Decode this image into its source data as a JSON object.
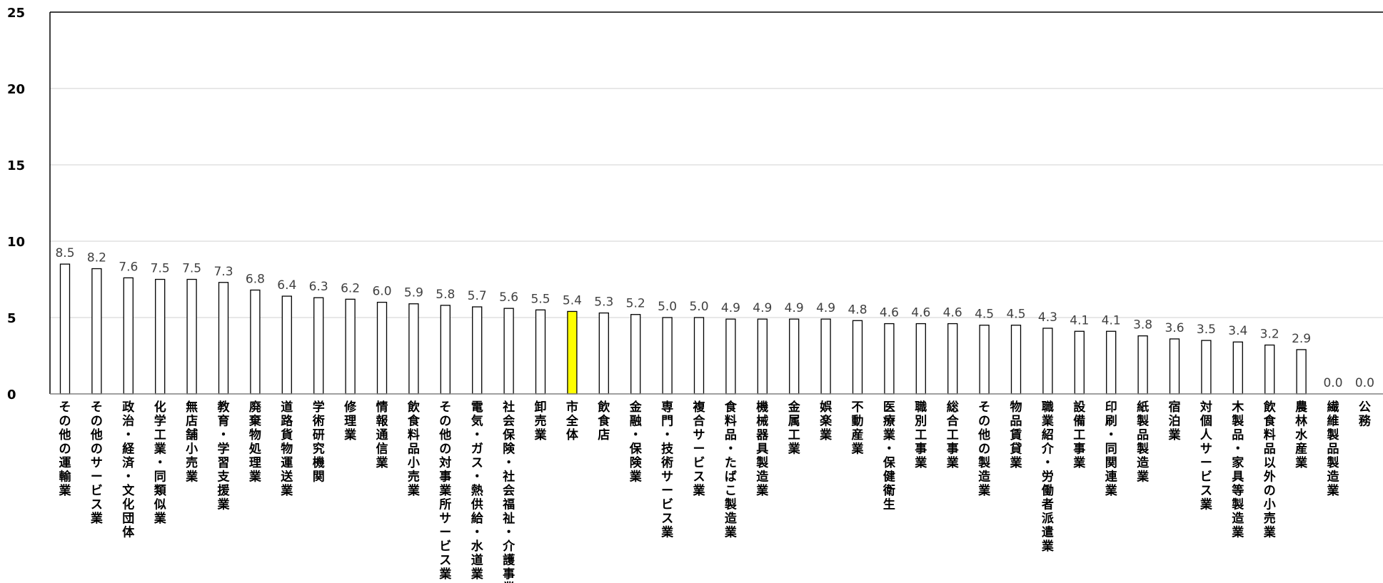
{
  "chart_data": {
    "type": "bar",
    "title": "",
    "xlabel": "",
    "ylabel": "",
    "ylim": [
      0,
      25
    ],
    "yticks": [
      0,
      5,
      10,
      15,
      20,
      25
    ],
    "grid": true,
    "highlight_category": "市全体",
    "colors": {
      "bar_fill": "#ffffff",
      "bar_stroke": "#000000",
      "highlight_fill": "#ffff00",
      "grid": "#d9d9d9"
    },
    "categories": [
      "その他の運輸業",
      "その他のサービス業",
      "政治・経済・文化団体",
      "化学工業・同類似業",
      "無店舗小売業",
      "教育・学習支援業",
      "廃棄物処理業",
      "道路貨物運送業",
      "学術研究機関",
      "修理業",
      "情報通信業",
      "飲食料品小売業",
      "その他の対事業所サービス業",
      "電気・ガス・熱供給・水道業",
      "社会保険・社会福祉・介護事業",
      "卸売業",
      "市全体",
      "飲食店",
      "金融・保険業",
      "専門・技術サービス業",
      "複合サービス業",
      "食料品・たばこ製造業",
      "機械器具製造業",
      "金属工業",
      "娯楽業",
      "不動産業",
      "医療業・保健衛生",
      "職別工事業",
      "総合工事業",
      "その他の製造業",
      "物品賃貸業",
      "職業紹介・労働者派遣業",
      "設備工事業",
      "印刷・同関連業",
      "紙製品製造業",
      "宿泊業",
      "対個人サービス業",
      "木製品・家具等製造業",
      "飲食料品以外の小売業",
      "農林水産業",
      "繊維製品製造業",
      "公務"
    ],
    "values": [
      8.5,
      8.2,
      7.6,
      7.5,
      7.5,
      7.3,
      6.8,
      6.4,
      6.3,
      6.2,
      6.0,
      5.9,
      5.8,
      5.7,
      5.6,
      5.5,
      5.4,
      5.3,
      5.2,
      5.0,
      5.0,
      4.9,
      4.9,
      4.9,
      4.9,
      4.8,
      4.6,
      4.6,
      4.6,
      4.5,
      4.5,
      4.3,
      4.1,
      4.1,
      3.8,
      3.6,
      3.5,
      3.4,
      3.2,
      2.9,
      0.0,
      0.0
    ],
    "data_labels": [
      "8.5",
      "8.2",
      "7.6",
      "7.5",
      "7.5",
      "7.3",
      "6.8",
      "6.4",
      "6.3",
      "6.2",
      "6.0",
      "5.9",
      "5.8",
      "5.7",
      "5.6",
      "5.5",
      "5.4",
      "5.3",
      "5.2",
      "5.0",
      "5.0",
      "4.9",
      "4.9",
      "4.9",
      "4.9",
      "4.8",
      "4.6",
      "4.6",
      "4.6",
      "4.5",
      "4.5",
      "4.3",
      "4.1",
      "4.1",
      "3.8",
      "3.6",
      "3.5",
      "3.4",
      "3.2",
      "2.9",
      "0.0",
      "0.0"
    ]
  }
}
